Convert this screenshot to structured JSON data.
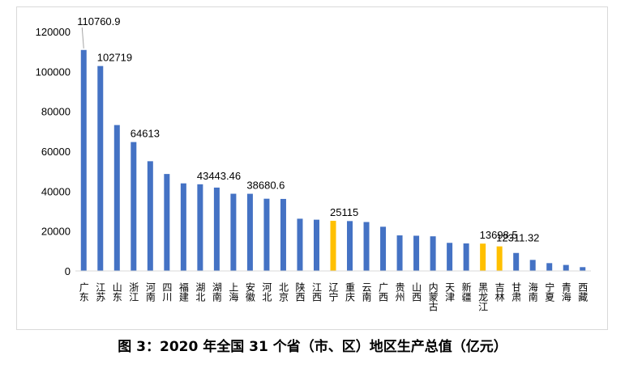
{
  "caption": "图 3：2020 年全国 31 个省（市、区）地区生产总值（亿元）",
  "colors": {
    "bar": "#4472c4",
    "highlight": "#ffc000",
    "axis": "#d9d9d9",
    "text": "#000000"
  },
  "chart_data": {
    "type": "bar",
    "title": "",
    "xlabel": "",
    "ylabel": "",
    "ylim": [
      0,
      120000
    ],
    "yticks": [
      0,
      20000,
      40000,
      60000,
      80000,
      100000,
      120000
    ],
    "grid": false,
    "legend": "none",
    "categories": [
      "广东",
      "江苏",
      "山东",
      "浙江",
      "河南",
      "四川",
      "福建",
      "湖北",
      "湖南",
      "上海",
      "安徽",
      "河北",
      "北京",
      "陕西",
      "江西",
      "辽宁",
      "重庆",
      "云南",
      "广西",
      "贵州",
      "山西",
      "内蒙古",
      "天津",
      "新疆",
      "黑龙江",
      "吉林",
      "甘肃",
      "海南",
      "宁夏",
      "青海",
      "西藏"
    ],
    "values": [
      110760.9,
      102719,
      73129,
      64613,
      54997,
      48599,
      43903,
      43443.46,
      41781,
      38700,
      38680.6,
      36207,
      36102,
      26182,
      25692,
      25115,
      25003,
      24522,
      22157,
      17827,
      17652,
      17360,
      14084,
      13798,
      13698.5,
      12311.32,
      9017,
      5532,
      3921,
      3006,
      1903
    ],
    "highlight_categories": [
      "辽宁",
      "黑龙江",
      "吉林"
    ],
    "data_labels": [
      {
        "category": "广东",
        "text": "110760.9"
      },
      {
        "category": "江苏",
        "text": "102719"
      },
      {
        "category": "浙江",
        "text": "64613"
      },
      {
        "category": "湖北",
        "text": "43443.46"
      },
      {
        "category": "安徽",
        "text": "38680.6"
      },
      {
        "category": "辽宁",
        "text": "25115"
      },
      {
        "category": "黑龙江",
        "text": "13698.5"
      },
      {
        "category": "吉林",
        "text": "12311.32"
      }
    ]
  }
}
